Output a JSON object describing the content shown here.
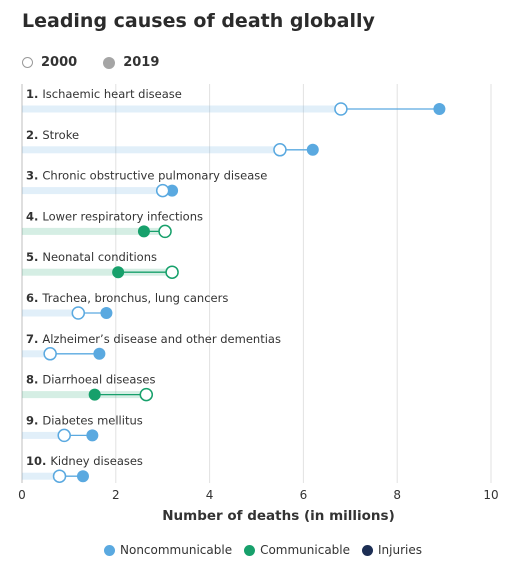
{
  "title": "Leading causes of death globally",
  "year_legend": [
    {
      "label": "2000",
      "style": "open"
    },
    {
      "label": "2019",
      "style": "filled"
    }
  ],
  "category_legend": [
    {
      "label": "Noncommunicable",
      "color": "#5aa9e0"
    },
    {
      "label": "Communicable",
      "color": "#17a06b"
    },
    {
      "label": "Injuries",
      "color": "#1c2e54"
    }
  ],
  "chart_data": {
    "type": "dumbbell",
    "xlabel": "Number of deaths (in millions)",
    "xlim": [
      0,
      10
    ],
    "xticks": [
      "0",
      "2",
      "4",
      "6",
      "8",
      "10"
    ],
    "grid": true,
    "series_names": [
      "2000",
      "2019"
    ],
    "rows": [
      {
        "rank": "1.",
        "label": "Ischaemic heart disease",
        "category": "Noncommunicable",
        "y2000": 6.8,
        "y2019": 8.9
      },
      {
        "rank": "2.",
        "label": "Stroke",
        "category": "Noncommunicable",
        "y2000": 5.5,
        "y2019": 6.2
      },
      {
        "rank": "3.",
        "label": "Chronic obstructive pulmonary disease",
        "category": "Noncommunicable",
        "y2000": 3.0,
        "y2019": 3.2
      },
      {
        "rank": "4.",
        "label": "Lower respiratory infections",
        "category": "Communicable",
        "y2000": 3.05,
        "y2019": 2.6
      },
      {
        "rank": "5.",
        "label": "Neonatal conditions",
        "category": "Communicable",
        "y2000": 3.2,
        "y2019": 2.05
      },
      {
        "rank": "6.",
        "label": "Trachea, bronchus, lung cancers",
        "category": "Noncommunicable",
        "y2000": 1.2,
        "y2019": 1.8
      },
      {
        "rank": "7.",
        "label": "Alzheimer’s disease and other dementias",
        "category": "Noncommunicable",
        "y2000": 0.6,
        "y2019": 1.65
      },
      {
        "rank": "8.",
        "label": "Diarrhoeal diseases",
        "category": "Communicable",
        "y2000": 2.65,
        "y2019": 1.55
      },
      {
        "rank": "9.",
        "label": "Diabetes mellitus",
        "category": "Noncommunicable",
        "y2000": 0.9,
        "y2019": 1.5
      },
      {
        "rank": "10.",
        "label": "Kidney diseases",
        "category": "Noncommunicable",
        "y2000": 0.8,
        "y2019": 1.3
      }
    ]
  }
}
